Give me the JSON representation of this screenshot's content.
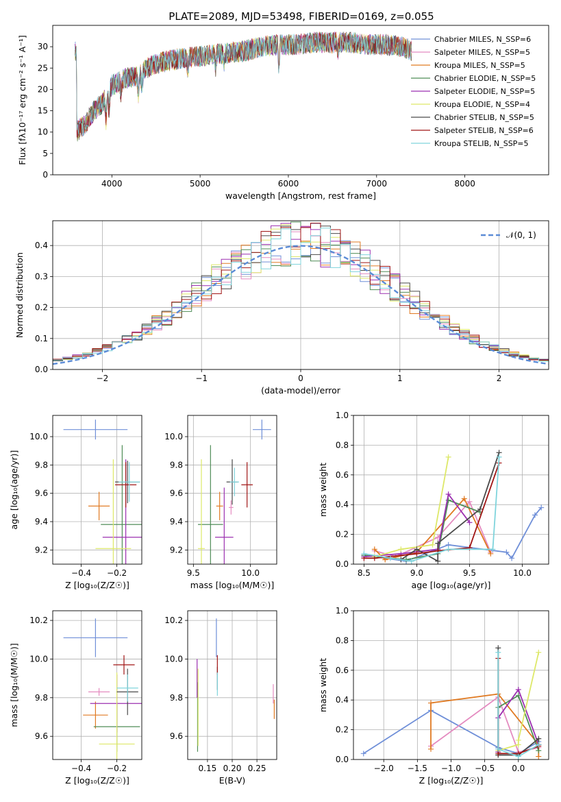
{
  "figure_title": "PLATE=2089, MJD=53498, FIBERID=0169, z=0.055",
  "chart_data": [
    {
      "id": "spectrum",
      "type": "line",
      "title": "PLATE=2089, MJD=53498, FIBERID=0169, z=0.055",
      "xlabel": "wavelength [Angstrom, rest frame]",
      "ylabel": "Flux [fλ10⁻¹⁷ erg cm⁻² s⁻¹ A⁻¹]",
      "xlim": [
        3330,
        8950
      ],
      "ylim": [
        0,
        35
      ],
      "xticks": [
        4000,
        5000,
        6000,
        7000,
        8000
      ],
      "yticks": [
        0,
        5,
        10,
        15,
        20,
        25,
        30
      ],
      "grid": false,
      "legend_position": "right",
      "series": [
        {
          "name": "Chabrier MILES, N_SSP=6",
          "color": "#6f8fd8"
        },
        {
          "name": "Salpeter MILES, N_SSP=5",
          "color": "#e48bc0"
        },
        {
          "name": "Kroupa MILES, N_SSP=5",
          "color": "#e07a22"
        },
        {
          "name": "Chabrier ELODIE, N_SSP=5",
          "color": "#4e8c56"
        },
        {
          "name": "Salpeter ELODIE, N_SSP=5",
          "color": "#9b2fb0"
        },
        {
          "name": "Kroupa ELODIE, N_SSP=4",
          "color": "#dde868"
        },
        {
          "name": "Chabrier STELIB, N_SSP=5",
          "color": "#4a4a4a"
        },
        {
          "name": "Salpeter STELIB, N_SSP=6",
          "color": "#a01515"
        },
        {
          "name": "Kroupa STELIB, N_SSP=5",
          "color": "#7fd4dc"
        }
      ],
      "continuum": {
        "x": [
          3600,
          3650,
          3700,
          3800,
          3900,
          3950,
          4000,
          4100,
          4200,
          4300,
          4400,
          4500,
          4700,
          4900,
          5100,
          5300,
          5500,
          5700,
          5900,
          6100,
          6300,
          6500,
          6700,
          6900,
          7100,
          7300,
          7400
        ],
        "y": [
          10,
          11,
          12,
          15,
          17,
          19,
          21,
          22,
          23,
          23,
          25,
          26,
          27,
          27.5,
          28,
          28.5,
          29,
          30,
          30.5,
          30.5,
          31,
          31,
          31,
          30.5,
          30.5,
          30,
          29
        ]
      },
      "absorption_features": [
        {
          "x": 3933,
          "depth": 6
        },
        {
          "x": 3968,
          "depth": 5
        },
        {
          "x": 4102,
          "depth": 3
        },
        {
          "x": 4300,
          "depth": 4
        },
        {
          "x": 4340,
          "depth": 3
        },
        {
          "x": 4861,
          "depth": 3
        },
        {
          "x": 5175,
          "depth": 3
        },
        {
          "x": 5270,
          "depth": 2
        },
        {
          "x": 5893,
          "depth": 6
        },
        {
          "x": 6563,
          "depth": 2
        }
      ]
    },
    {
      "id": "residuals",
      "type": "histogram",
      "xlabel": "(data-model)/error",
      "ylabel": "Normed distribution",
      "xlim": [
        -2.5,
        2.5
      ],
      "ylim": [
        0,
        0.48
      ],
      "xticks": [
        -2,
        -1,
        0,
        1,
        2
      ],
      "yticks": [
        0.0,
        0.1,
        0.2,
        0.3,
        0.4
      ],
      "grid": true,
      "bin_width": 0.1,
      "bin_start": -2.5,
      "reference_curve": {
        "name": "𝒩(0, 1)",
        "mu": 0,
        "sigma": 1,
        "color": "#5b8bd6",
        "style": "dashed"
      },
      "legend_position": "top-right"
    },
    {
      "id": "age_vs_Z",
      "type": "errorbar",
      "xlabel": "Z [log₁₀(Z/Z☉)]",
      "ylabel": "age  [log₁₀(age/yr)]",
      "xlim": [
        -0.56,
        -0.06
      ],
      "ylim": [
        9.1,
        10.15
      ],
      "xticks": [
        -0.4,
        -0.2
      ],
      "yticks": [
        9.2,
        9.4,
        9.6,
        9.8,
        10.0
      ],
      "grid": true,
      "points": [
        {
          "x": -0.32,
          "y": 10.05,
          "xerr": 0.18,
          "yerr": 0.07,
          "color": "#6f8fd8"
        },
        {
          "x": -0.3,
          "y": 9.51,
          "xerr": 0.06,
          "yerr": 0.1,
          "color": "#e07a22"
        },
        {
          "x": -0.17,
          "y": 9.38,
          "xerr": 0.12,
          "yerr": 0.56,
          "color": "#4e8c56"
        },
        {
          "x": -0.15,
          "y": 9.29,
          "xerr": 0.13,
          "yerr": 0.55,
          "color": "#9b2fb0"
        },
        {
          "x": -0.22,
          "y": 9.21,
          "xerr": 0.1,
          "yerr": 0.63,
          "color": "#dde868"
        },
        {
          "x": -0.14,
          "y": 9.68,
          "xerr": 0.07,
          "yerr": 0.15,
          "color": "#4a4a4a"
        },
        {
          "x": -0.15,
          "y": 9.66,
          "xerr": 0.06,
          "yerr": 0.16,
          "color": "#a01515"
        },
        {
          "x": -0.13,
          "y": 9.68,
          "xerr": 0.06,
          "yerr": 0.14,
          "color": "#7fd4dc"
        }
      ]
    },
    {
      "id": "age_vs_mass",
      "type": "errorbar",
      "xlabel": "mass [log₁₀(M/M☉)]",
      "ylabel": "",
      "xlim": [
        9.45,
        10.23
      ],
      "ylim": [
        9.1,
        10.15
      ],
      "xticks": [
        9.5,
        10.0
      ],
      "yticks": [
        9.2,
        9.4,
        9.6,
        9.8,
        10.0
      ],
      "grid": true,
      "points": [
        {
          "x": 10.1,
          "y": 10.05,
          "xerr": 0.08,
          "yerr": 0.07,
          "color": "#6f8fd8"
        },
        {
          "x": 9.73,
          "y": 9.51,
          "xerr": 0.03,
          "yerr": 0.1,
          "color": "#e07a22"
        },
        {
          "x": 9.83,
          "y": 9.5,
          "xerr": 0.02,
          "yerr": 0.05,
          "color": "#e48bc0"
        },
        {
          "x": 9.65,
          "y": 9.38,
          "xerr": 0.11,
          "yerr": 0.56,
          "color": "#4e8c56"
        },
        {
          "x": 9.77,
          "y": 9.29,
          "xerr": 0.08,
          "yerr": 0.35,
          "color": "#9b2fb0"
        },
        {
          "x": 9.57,
          "y": 9.21,
          "xerr": 0.03,
          "yerr": 0.63,
          "color": "#dde868"
        },
        {
          "x": 9.84,
          "y": 9.68,
          "xerr": 0.05,
          "yerr": 0.16,
          "color": "#4a4a4a"
        },
        {
          "x": 9.97,
          "y": 9.66,
          "xerr": 0.05,
          "yerr": 0.16,
          "color": "#a01515"
        },
        {
          "x": 9.86,
          "y": 9.68,
          "xerr": 0.04,
          "yerr": 0.1,
          "color": "#7fd4dc"
        }
      ]
    },
    {
      "id": "mass_weight_vs_age",
      "type": "line",
      "xlabel": "age  [log₁₀(age/yr)]",
      "ylabel": "mass weight",
      "xlim": [
        8.4,
        10.25
      ],
      "ylim": [
        0,
        1.0
      ],
      "xticks": [
        8.5,
        9.0,
        9.5,
        10.0
      ],
      "yticks": [
        0.0,
        0.2,
        0.4,
        0.6,
        0.8,
        1.0
      ],
      "grid": true,
      "series": [
        {
          "color": "#6f8fd8",
          "x": [
            8.5,
            8.9,
            9.3,
            9.85,
            9.9,
            10.12,
            10.18
          ],
          "y": [
            0.06,
            0.02,
            0.13,
            0.08,
            0.04,
            0.33,
            0.38
          ]
        },
        {
          "color": "#e48bc0",
          "x": [
            8.6,
            8.8,
            9.2,
            9.5,
            9.7
          ],
          "y": [
            0.09,
            0.05,
            0.18,
            0.42,
            0.08
          ]
        },
        {
          "color": "#e07a22",
          "x": [
            8.6,
            8.7,
            9.0,
            9.45,
            9.7
          ],
          "y": [
            0.1,
            0.03,
            0.08,
            0.44,
            0.07
          ]
        },
        {
          "color": "#4e8c56",
          "x": [
            8.5,
            8.9,
            9.2,
            9.3,
            9.6
          ],
          "y": [
            0.06,
            0.03,
            0.07,
            0.43,
            0.35
          ]
        },
        {
          "color": "#9b2fb0",
          "x": [
            8.5,
            8.85,
            9.2,
            9.3,
            9.5
          ],
          "y": [
            0.05,
            0.07,
            0.1,
            0.47,
            0.28
          ]
        },
        {
          "color": "#dde868",
          "x": [
            8.6,
            8.85,
            9.15,
            9.3
          ],
          "y": [
            0.05,
            0.1,
            0.13,
            0.72
          ]
        },
        {
          "color": "#4a4a4a",
          "x": [
            8.85,
            9.0,
            9.2,
            9.2,
            9.6,
            9.78
          ],
          "y": [
            0.03,
            0.1,
            0.02,
            0.14,
            0.37,
            0.75
          ]
        },
        {
          "color": "#a01515",
          "x": [
            8.5,
            8.6,
            9.0,
            9.2,
            9.5,
            9.78
          ],
          "y": [
            0.04,
            0.04,
            0.07,
            0.09,
            0.11,
            0.68
          ]
        },
        {
          "color": "#7fd4dc",
          "x": [
            8.5,
            8.75,
            8.95,
            9.3,
            9.72,
            9.78
          ],
          "y": [
            0.07,
            0.04,
            0.02,
            0.1,
            0.1,
            0.72
          ]
        }
      ]
    },
    {
      "id": "mass_vs_Z",
      "type": "errorbar",
      "xlabel": "Z [log₁₀(Z/Z☉)]",
      "ylabel": "mass [log₁₀(M/M☉)]",
      "xlim": [
        -0.56,
        -0.06
      ],
      "ylim": [
        9.48,
        10.25
      ],
      "xticks": [
        -0.4,
        -0.2
      ],
      "yticks": [
        9.6,
        9.8,
        10.0,
        10.2
      ],
      "grid": true,
      "points": [
        {
          "x": -0.32,
          "y": 10.11,
          "xerr": 0.18,
          "yerr": 0.1,
          "color": "#6f8fd8"
        },
        {
          "x": -0.32,
          "y": 9.71,
          "xerr": 0.07,
          "yerr": 0.07,
          "color": "#e07a22"
        },
        {
          "x": -0.3,
          "y": 9.83,
          "xerr": 0.06,
          "yerr": 0.02,
          "color": "#e48bc0"
        },
        {
          "x": -0.2,
          "y": 9.65,
          "xerr": 0.13,
          "yerr": 0.13,
          "color": "#4e8c56"
        },
        {
          "x": -0.2,
          "y": 9.77,
          "xerr": 0.15,
          "yerr": 0.15,
          "color": "#9b2fb0"
        },
        {
          "x": -0.2,
          "y": 9.56,
          "xerr": 0.1,
          "yerr": 0.37,
          "color": "#dde868"
        },
        {
          "x": -0.14,
          "y": 9.83,
          "xerr": 0.06,
          "yerr": 0.12,
          "color": "#4a4a4a"
        },
        {
          "x": -0.16,
          "y": 9.97,
          "xerr": 0.06,
          "yerr": 0.05,
          "color": "#a01515"
        },
        {
          "x": -0.14,
          "y": 9.85,
          "xerr": 0.06,
          "yerr": 0.07,
          "color": "#7fd4dc"
        }
      ]
    },
    {
      "id": "mass_vs_ebv",
      "type": "errorbar",
      "xlabel": "E(B-V)",
      "ylabel": "",
      "xlim": [
        0.11,
        0.29
      ],
      "ylim": [
        9.48,
        10.25
      ],
      "xticks": [
        0.15,
        0.2,
        0.25
      ],
      "yticks": [
        9.6,
        9.8,
        10.0,
        10.2
      ],
      "grid": true,
      "points": [
        {
          "x": 0.168,
          "y": 10.11,
          "xerr": 0,
          "yerr": 0.1,
          "color": "#6f8fd8"
        },
        {
          "x": 0.285,
          "y": 9.74,
          "xerr": 0,
          "yerr": 0.05,
          "color": "#e07a22"
        },
        {
          "x": 0.283,
          "y": 9.82,
          "xerr": 0,
          "yerr": 0.05,
          "color": "#e48bc0"
        },
        {
          "x": 0.13,
          "y": 9.7,
          "xerr": 0,
          "yerr": 0.18,
          "color": "#4e8c56"
        },
        {
          "x": 0.129,
          "y": 9.9,
          "xerr": 0,
          "yerr": 0.1,
          "color": "#9b2fb0"
        },
        {
          "x": 0.131,
          "y": 9.75,
          "xerr": 0,
          "yerr": 0.2,
          "color": "#dde868"
        },
        {
          "x": 0.17,
          "y": 9.9,
          "xerr": 0,
          "yerr": 0.06,
          "color": "#4a4a4a"
        },
        {
          "x": 0.17,
          "y": 9.97,
          "xerr": 0,
          "yerr": 0.05,
          "color": "#a01515"
        },
        {
          "x": 0.17,
          "y": 9.87,
          "xerr": 0,
          "yerr": 0.06,
          "color": "#7fd4dc"
        }
      ]
    },
    {
      "id": "mass_weight_vs_Z",
      "type": "line",
      "xlabel": "Z [log₁₀(Z/Z☉)]",
      "ylabel": "mass weight",
      "xlim": [
        -2.45,
        0.45
      ],
      "ylim": [
        0,
        1.0
      ],
      "xticks": [
        -2.0,
        -1.5,
        -1.0,
        -0.5,
        0.0
      ],
      "yticks": [
        0.0,
        0.2,
        0.4,
        0.6,
        0.8,
        1.0
      ],
      "grid": true,
      "series": [
        {
          "color": "#6f8fd8",
          "x": [
            -2.3,
            -1.3,
            -0.3,
            0.0,
            0.3
          ],
          "y": [
            0.04,
            0.33,
            0.08,
            0.04,
            0.12
          ]
        },
        {
          "color": "#e48bc0",
          "x": [
            -1.3,
            -0.3,
            0.0,
            0.3
          ],
          "y": [
            0.09,
            0.42,
            0.05,
            0.08
          ]
        },
        {
          "color": "#e07a22",
          "x": [
            -1.3,
            -1.3,
            -0.3,
            0.3,
            0.3
          ],
          "y": [
            0.07,
            0.38,
            0.44,
            0.1,
            0.02
          ]
        },
        {
          "color": "#4e8c56",
          "x": [
            -0.3,
            -0.3,
            0.0,
            0.3
          ],
          "y": [
            0.03,
            0.35,
            0.43,
            0.06
          ]
        },
        {
          "color": "#9b2fb0",
          "x": [
            -0.3,
            -0.3,
            0.0,
            0.3
          ],
          "y": [
            0.05,
            0.28,
            0.47,
            0.1
          ]
        },
        {
          "color": "#dde868",
          "x": [
            -0.3,
            0.0,
            0.0,
            0.3
          ],
          "y": [
            0.06,
            0.1,
            0.13,
            0.72
          ]
        },
        {
          "color": "#4a4a4a",
          "x": [
            -0.3,
            -0.3,
            0.0,
            0.3,
            0.3
          ],
          "y": [
            0.75,
            0.03,
            0.03,
            0.14,
            0.1
          ]
        },
        {
          "color": "#a01515",
          "x": [
            -0.3,
            -0.3,
            0.0,
            0.3
          ],
          "y": [
            0.68,
            0.04,
            0.04,
            0.09
          ]
        },
        {
          "color": "#7fd4dc",
          "x": [
            -0.3,
            -0.3,
            0.0,
            0.3
          ],
          "y": [
            0.72,
            0.07,
            0.02,
            0.1
          ]
        }
      ]
    }
  ]
}
